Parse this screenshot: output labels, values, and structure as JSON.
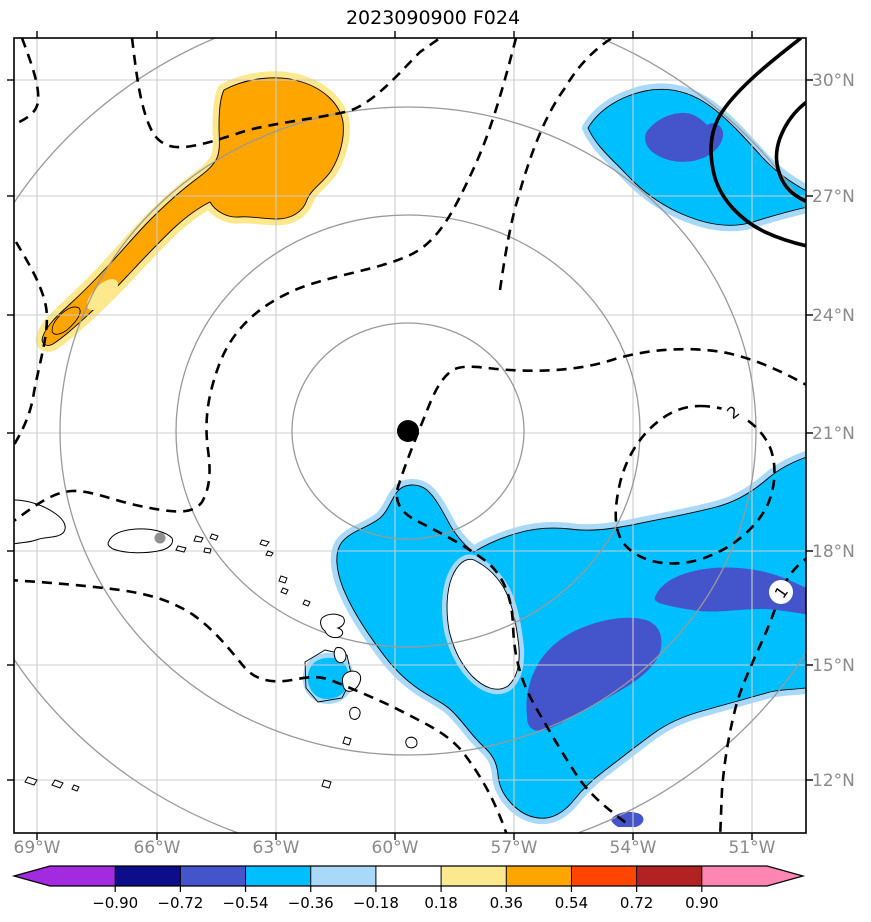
{
  "figure": {
    "title": "2023090900 F024"
  },
  "chart_data": {
    "type": "heatmap",
    "subtype": "filled-contour-map",
    "title": "2023090900 F024",
    "x_tick_labels": [
      "69°W",
      "66°W",
      "63°W",
      "60°W",
      "57°W",
      "54°W",
      "51°W"
    ],
    "y_tick_labels": [
      "30°N",
      "27°N",
      "24°N",
      "21°N",
      "18°N",
      "15°N",
      "12°N"
    ],
    "lon_range_approx": [
      "69.6°W",
      "49.8°W"
    ],
    "lat_range_approx": [
      "10.5°N",
      "31.2°N"
    ],
    "grid": "3-degree gray graticule, labels on bottom and right only",
    "colorbar": {
      "orientation": "horizontal",
      "extend": "both",
      "tick_labels": [
        "−0.90",
        "−0.72",
        "−0.54",
        "−0.36",
        "−0.18",
        "0.18",
        "0.36",
        "0.54",
        "0.72",
        "0.90"
      ],
      "segment_colors": [
        "#a22be0",
        "#0d0d8c",
        "#4455cb",
        "#00bfff",
        "#a8d9f8",
        "#ffffff",
        "#fce88e",
        "#ffa500",
        "#ff4500",
        "#b22222",
        "#ff85b3"
      ],
      "extend_low_color": "#a22be0",
      "extend_high_color": "#ff85b3"
    },
    "contour_line_labels": [
      "2",
      "1"
    ],
    "contour_styles": {
      "dashed_black": "labeled contour lines across map (values 1, 2)",
      "thick_solid_black": "two nested contours at northeast edge",
      "thin_solid_black": "outlines around shaded anomaly regions"
    },
    "markers": [
      {
        "name": "storm-center",
        "style": "filled black circle",
        "approx_lon": "59.7°W",
        "approx_lat": "21.0°N"
      },
      {
        "name": "station-dot",
        "style": "small gray circle on Puerto Rico",
        "approx_lon": "66.0°W",
        "approx_lat": "18.4°N"
      }
    ],
    "range_rings": {
      "count": 4,
      "center": "storm-center",
      "spacing": "equal radial increments, gray thin circles"
    },
    "shaded_regions": [
      {
        "sign": "positive",
        "peak_band": "0.36 to 0.54",
        "fill": "#ffa500",
        "fringe": "#fde88e",
        "approx_location": "northwest band ~68–62°W, 23–29°N, elongated SW–NE"
      },
      {
        "sign": "negative",
        "peak_band": "−0.72 to −0.54",
        "fill": "#00bfff",
        "core_fill": "#4455cb",
        "fringe": "#a8d9f8",
        "approx_location": "northeast blob ~55–51°W, 26–30°N"
      },
      {
        "sign": "negative",
        "peak_band": "−0.72 to −0.54",
        "fill": "#00bfff",
        "core_fill": "#4455cb",
        "fringe": "#a8d9f8",
        "approx_location": "large southeast region ~59–50°W, 11–19°N with enclosed white hole ~58–57°W, 16–17.5°N"
      },
      {
        "sign": "negative",
        "peak_band": "−0.54 to −0.36",
        "fill": "#00bfff",
        "fringe": "#a8d9f8",
        "approx_location": "small spot at Martinique ~61°W, 14.5°N"
      }
    ],
    "coastlines": [
      "Hispaniola (east tip)",
      "Puerto Rico",
      "Virgin Islands",
      "Lesser Antilles chain",
      "Barbados",
      "ABC islands"
    ]
  },
  "colors": {
    "grid_gray": "#cccccc",
    "ring_gray": "#999999",
    "tick_label_gray": "#8a8a8a",
    "contour_black": "#000000",
    "shade_orange": "#ffa500",
    "shade_yellow_fringe": "#fde88e",
    "shade_cyan": "#00bfff",
    "shade_light_fringe": "#a8d9f8",
    "shade_royal_core": "#4455cb"
  }
}
